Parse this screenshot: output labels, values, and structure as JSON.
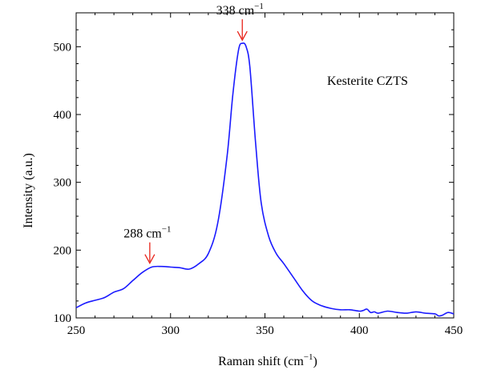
{
  "chart_data": {
    "type": "line",
    "xlabel": "Raman shift (cm",
    "xlabel_sup": "−1",
    "xlabel_tail": ")",
    "ylabel": "Intensity (a.u.)",
    "xlim": [
      250,
      450
    ],
    "ylim": [
      100,
      550
    ],
    "x_ticks": [
      250,
      300,
      350,
      400,
      450
    ],
    "y_ticks": [
      100,
      200,
      300,
      400,
      500
    ],
    "grid": false,
    "series_color": "#1a1aff",
    "annotation_color": "#e8231a",
    "legend_text": "Kesterite CZTS",
    "series": [
      {
        "x": [
          250,
          255,
          260,
          265,
          270,
          275,
          280,
          285,
          290,
          295,
          300,
          305,
          310,
          315,
          320,
          325,
          330,
          333,
          336,
          338,
          340,
          342,
          345,
          348,
          352,
          356,
          360,
          365,
          370,
          375,
          380,
          385,
          390,
          395,
          400,
          402,
          404,
          406,
          408,
          410,
          415,
          420,
          425,
          430,
          435,
          440,
          442,
          444,
          447,
          450
        ],
        "y": [
          115,
          122,
          126,
          130,
          138,
          143,
          155,
          167,
          175,
          176,
          175,
          174,
          172,
          180,
          195,
          240,
          340,
          430,
          495,
          505,
          500,
          470,
          360,
          270,
          220,
          195,
          180,
          160,
          140,
          125,
          118,
          114,
          112,
          112,
          110,
          111,
          113,
          108,
          109,
          107,
          110,
          108,
          107,
          109,
          107,
          106,
          103,
          104,
          108,
          106
        ]
      }
    ],
    "annotations": [
      {
        "x": 338,
        "y": 505,
        "label": "338 cm",
        "sup": "−1"
      },
      {
        "x": 289,
        "y": 176,
        "label": "288 cm",
        "sup": "−1"
      }
    ]
  }
}
